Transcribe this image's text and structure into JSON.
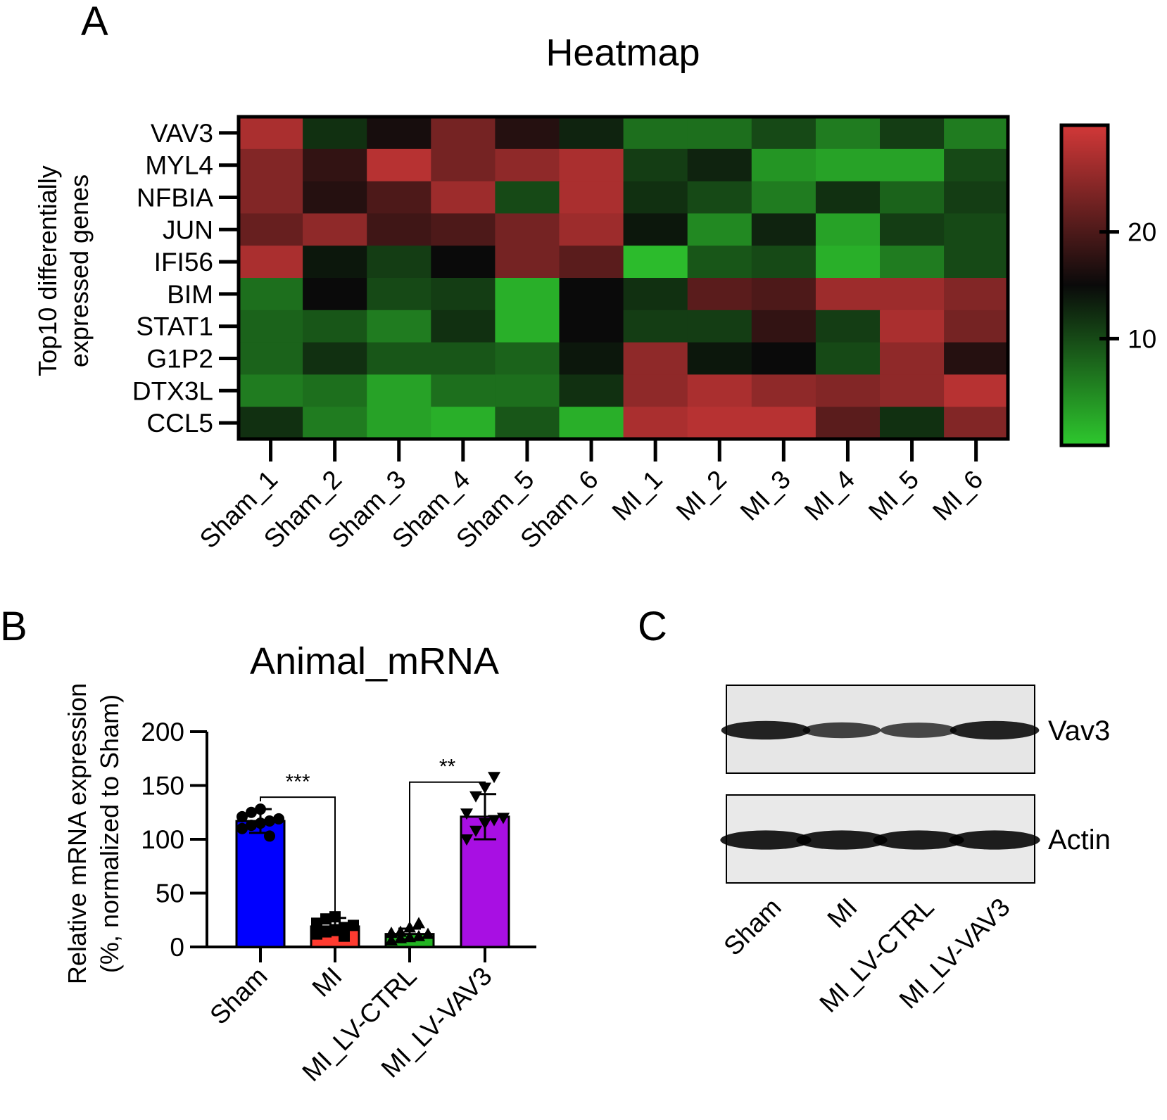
{
  "panels": {
    "A": {
      "letter": "A"
    },
    "B": {
      "letter": "B"
    },
    "C": {
      "letter": "C"
    }
  },
  "chart_data": [
    {
      "type": "heatmap",
      "title": "Heatmap",
      "ylabel": [
        "Top10 differentially",
        "expressed genes"
      ],
      "rows": [
        "VAV3",
        "MYL4",
        "NFBIA",
        "JUN",
        "IFI56",
        "BIM",
        "STAT1",
        "G1P2",
        "DTX3L",
        "CCL5"
      ],
      "columns": [
        "Sham_1",
        "Sham_2",
        "Sham_3",
        "Sham_4",
        "Sham_5",
        "Sham_6",
        "MI_1",
        "MI_2",
        "MI_3",
        "MI_4",
        "MI_5",
        "MI_6"
      ],
      "values": [
        [
          27,
          12,
          16,
          23,
          17,
          13,
          7,
          7,
          10,
          6,
          11,
          6
        ],
        [
          24,
          18,
          28,
          23,
          25,
          27,
          11,
          13,
          4,
          3,
          3,
          10
        ],
        [
          24,
          17,
          20,
          26,
          10,
          27,
          12,
          10,
          6,
          12,
          8,
          11
        ],
        [
          22,
          25,
          19,
          20,
          23,
          26,
          14,
          5,
          13,
          3,
          11,
          10
        ],
        [
          27,
          14,
          11,
          15,
          23,
          21,
          1,
          9,
          10,
          2,
          6,
          10
        ],
        [
          7,
          15,
          10,
          11,
          2,
          15,
          12,
          21,
          20,
          26,
          26,
          24
        ],
        [
          8,
          9,
          6,
          12,
          2,
          15,
          11,
          11,
          18,
          11,
          27,
          23
        ],
        [
          8,
          12,
          9,
          9,
          8,
          14,
          25,
          14,
          15,
          10,
          25,
          17
        ],
        [
          6,
          7,
          3,
          7,
          7,
          12,
          25,
          27,
          25,
          24,
          25,
          28
        ],
        [
          12,
          6,
          3,
          2,
          9,
          2,
          27,
          28,
          28,
          21,
          12,
          24
        ]
      ],
      "colorbar": {
        "ticks": [
          20,
          10
        ],
        "min": 0,
        "max": 30
      },
      "colors": {
        "low": "#2ec82e",
        "mid": "#0a0a0a",
        "high": "#d23838"
      }
    },
    {
      "type": "bar",
      "title": "Animal_mRNA",
      "ylabel": [
        "Relative mRNA expression",
        "(%, normalized to Sham)"
      ],
      "categories": [
        "Sham",
        "MI",
        "MI_LV-CTRL",
        "MI_LV-VAV3"
      ],
      "values": [
        117,
        19,
        12,
        121
      ],
      "error": [
        11,
        8,
        5,
        21
      ],
      "colors": [
        "#0000ff",
        "#ff3b30",
        "#22b422",
        "#a80fe3"
      ],
      "markers": [
        "circle",
        "square",
        "triangle-up",
        "triangle-down"
      ],
      "points": [
        [
          110,
          113,
          115,
          117,
          119,
          121,
          125,
          128,
          103
        ],
        [
          12,
          14,
          16,
          18,
          20,
          22,
          26,
          28,
          10
        ],
        [
          6,
          8,
          9,
          10,
          12,
          13,
          14,
          18,
          22
        ],
        [
          100,
          108,
          115,
          118,
          120,
          124,
          140,
          148,
          158
        ]
      ],
      "ylim": [
        0,
        200
      ],
      "yticks": [
        0,
        50,
        100,
        150,
        200
      ],
      "significance": [
        {
          "from": 0,
          "to": 1,
          "label": "***"
        },
        {
          "from": 2,
          "to": 3,
          "label": "**"
        }
      ]
    }
  ],
  "blot": {
    "bands": [
      "Vav3",
      "Actin"
    ],
    "lanes": [
      "Sham",
      "MI",
      "MI_LV-CTRL",
      "MI_LV-VAV3"
    ],
    "intensity": {
      "Vav3": [
        0.9,
        0.6,
        0.55,
        0.9
      ],
      "Actin": [
        0.95,
        0.95,
        0.95,
        0.95
      ]
    }
  }
}
